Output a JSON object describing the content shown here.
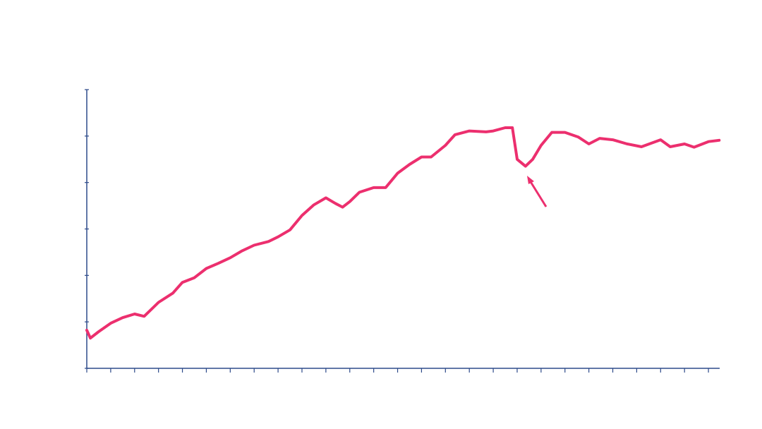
{
  "chart_data": {
    "type": "line",
    "x": [
      0,
      0.15,
      0.5,
      1,
      1.5,
      2,
      2.4,
      3,
      3.6,
      4,
      4.5,
      5,
      5.5,
      6,
      6.5,
      7,
      7.6,
      8,
      8.5,
      9,
      9.5,
      10,
      10.4,
      10.7,
      11,
      11.4,
      12,
      12.5,
      13,
      13.5,
      14,
      14.4,
      15,
      15.4,
      16,
      16.7,
      17,
      17.5,
      17.8,
      18,
      18.35,
      18.65,
      19,
      19.45,
      20,
      20.55,
      21,
      21.45,
      22,
      22.6,
      23.2,
      24,
      24.4,
      25,
      25.4,
      26,
      26.45
    ],
    "series": [
      {
        "color": "#ec2f6e",
        "values": [
          0.82,
          0.65,
          0.79,
          0.97,
          1.09,
          1.17,
          1.12,
          1.42,
          1.62,
          1.85,
          1.95,
          2.15,
          2.26,
          2.38,
          2.53,
          2.65,
          2.73,
          2.83,
          2.98,
          3.29,
          3.52,
          3.67,
          3.55,
          3.47,
          3.59,
          3.79,
          3.89,
          3.89,
          4.2,
          4.39,
          4.55,
          4.55,
          4.8,
          5.03,
          5.11,
          5.09,
          5.11,
          5.18,
          5.18,
          4.5,
          4.35,
          4.5,
          4.8,
          5.08,
          5.08,
          4.98,
          4.83,
          4.95,
          4.92,
          4.83,
          4.77,
          4.92,
          4.77,
          4.83,
          4.76,
          4.88,
          4.91
        ]
      }
    ],
    "xlim": [
      0,
      26.47
    ],
    "xticks": [
      0,
      1,
      2,
      3,
      4,
      5,
      6,
      7,
      8,
      9,
      10,
      11,
      12,
      13,
      14,
      15,
      16,
      17,
      18,
      19,
      20,
      21,
      22,
      23,
      24,
      25,
      26
    ],
    "ylim": [
      0,
      6
    ],
    "yticks": [
      0,
      1,
      2,
      3,
      4,
      5,
      6
    ],
    "axis_color": "#2d4a8a"
  }
}
